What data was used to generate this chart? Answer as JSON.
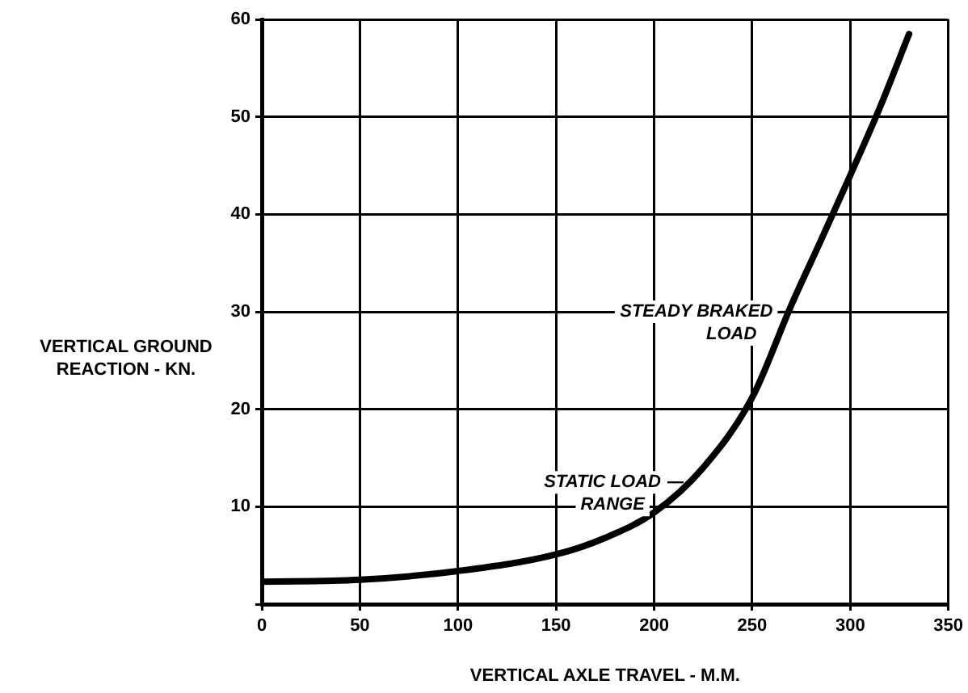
{
  "chart_data": {
    "type": "line",
    "xlabel": "VERTICAL AXLE TRAVEL - M.M.",
    "ylabel": "VERTICAL GROUND REACTION - KN.",
    "xlim": [
      0,
      350
    ],
    "xticks": [
      0,
      50,
      100,
      150,
      200,
      250,
      300,
      350
    ],
    "ylim": [
      0,
      60
    ],
    "yticks": [
      {
        "value": 0,
        "label": null
      },
      10,
      20,
      30,
      40,
      50,
      60
    ],
    "grid": true,
    "legend": false,
    "marker": "none",
    "line_style": "solid",
    "series": [
      {
        "color": "#000000",
        "x": [
          0,
          50,
          100,
          150,
          175,
          200,
          225,
          250,
          270,
          285,
          300,
          315,
          330
        ],
        "values": [
          2.3,
          2.5,
          3.4,
          5.1,
          6.8,
          9.4,
          14,
          21.2,
          30.7,
          37.3,
          44,
          50.9,
          58.5
        ]
      }
    ],
    "annotations": [
      {
        "text": "STEADY BRAKED LOAD",
        "x": 272,
        "y": 30
      },
      {
        "text": "STATIC LOAD RANGE",
        "x": 215,
        "y": 12.5
      }
    ]
  }
}
